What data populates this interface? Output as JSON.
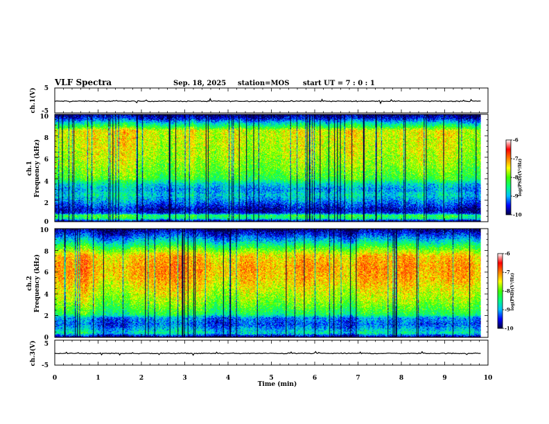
{
  "header": {
    "title": "VLF Spectra",
    "date": "Sep. 18, 2025",
    "station": "station=MOS",
    "start_ut": "start UT =  7 : 0  : 1"
  },
  "chart_data": [
    {
      "type": "line",
      "id": "ch1-voltage",
      "ylabel": "ch.1(V)",
      "ylim": [
        -5,
        5
      ],
      "yticks": [
        "5",
        "-5"
      ],
      "xlim": [
        0,
        10
      ],
      "series": [
        {
          "name": "ch.1 voltage",
          "mean": -0.3,
          "noise": 0.4
        }
      ]
    },
    {
      "type": "heatmap",
      "id": "ch1-spectrogram",
      "ylabel": "ch.1 Frequency (kHz)",
      "ylabel_line1": "ch.1",
      "ylabel_line2": "Frequency (kHz)",
      "ylim": [
        0,
        10
      ],
      "yticks": [
        "0",
        "2",
        "4",
        "6",
        "8",
        "10"
      ],
      "xlim": [
        0,
        10
      ],
      "data_end_min": 9.83,
      "colorbar": {
        "min": -10,
        "max": -6,
        "ticks": [
          "-6",
          "-7",
          "-8",
          "-9",
          "-10"
        ],
        "label": "log(PSD)(V²/Hz)"
      },
      "profile_freq_khz": [
        0,
        0.3,
        0.6,
        0.8,
        1.1,
        1.5,
        2.0,
        2.5,
        3.0,
        3.5,
        4.0,
        5.0,
        6.0,
        7.0,
        8.5,
        8.8,
        9.2,
        9.6,
        10.0
      ],
      "profile_log_psd": [
        -10,
        -8.3,
        -8.0,
        -9.4,
        -9.6,
        -9.3,
        -8.9,
        -8.6,
        -8.9,
        -8.6,
        -7.9,
        -7.6,
        -7.4,
        -7.3,
        -7.2,
        -7.9,
        -8.6,
        -9.4,
        -9.9
      ]
    },
    {
      "type": "heatmap",
      "id": "ch2-spectrogram",
      "ylabel": "ch.2 Frequency (kHz)",
      "ylabel_line1": "ch.2",
      "ylabel_line2": "Frequency (kHz)",
      "ylim": [
        0,
        10
      ],
      "yticks": [
        "0",
        "2",
        "4",
        "6",
        "8",
        "10"
      ],
      "xlim": [
        0,
        10
      ],
      "data_end_min": 9.83,
      "colorbar": {
        "min": -10,
        "max": -6,
        "ticks": [
          "-6",
          "-7",
          "-8",
          "-9",
          "-10"
        ],
        "label": "log(PSD)(V²/Hz)"
      },
      "profile_freq_khz": [
        0,
        0.4,
        0.8,
        1.2,
        1.8,
        2.1,
        2.8,
        3.5,
        4.5,
        5.5,
        6.5,
        7.5,
        8.2,
        8.8,
        9.4,
        10.0
      ],
      "profile_log_psd": [
        -10,
        -8.5,
        -8.9,
        -9.2,
        -9.0,
        -8.2,
        -7.8,
        -7.5,
        -7.2,
        -6.9,
        -6.8,
        -7.0,
        -7.8,
        -8.6,
        -9.3,
        -9.9
      ]
    },
    {
      "type": "line",
      "id": "ch3-voltage",
      "ylabel": "ch.3(V)",
      "ylim": [
        -5,
        5
      ],
      "yticks": [
        "5",
        "-5"
      ],
      "xlim": [
        0,
        10
      ],
      "series": [
        {
          "name": "ch.3 voltage",
          "mean": -0.3,
          "noise": 0.4
        }
      ]
    }
  ],
  "x_axis": {
    "label": "Time (min)",
    "ticks": [
      "0",
      "1",
      "2",
      "3",
      "4",
      "5",
      "6",
      "7",
      "8",
      "9",
      "10"
    ]
  },
  "colors": {
    "colormap": [
      "#000040",
      "#0000ff",
      "#00bfff",
      "#00ff80",
      "#40ff00",
      "#ffff00",
      "#ff8000",
      "#ff0000",
      "#ffffff"
    ]
  }
}
